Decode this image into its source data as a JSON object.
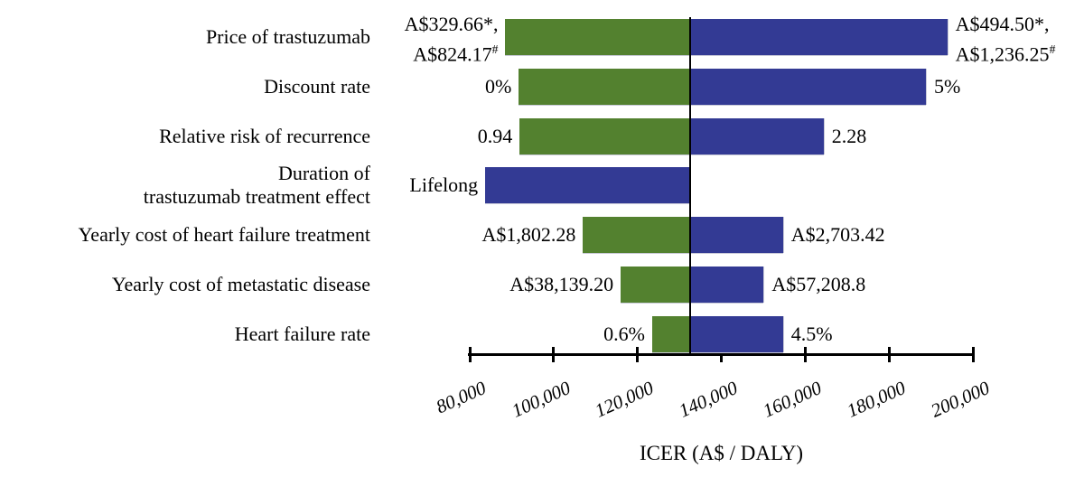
{
  "chart_data": {
    "type": "bar",
    "variant": "tornado-sensitivity",
    "xlabel": "ICER (A$ / DALY)",
    "xlim": [
      80000,
      200000
    ],
    "x_tick_values": [
      80000,
      100000,
      120000,
      140000,
      160000,
      180000,
      200000
    ],
    "x_tick_labels": [
      "80,000",
      "100,000",
      "120,000",
      "140,000",
      "160,000",
      "180,000",
      "200,000"
    ],
    "baseline_value": 132600,
    "grid": false,
    "legend": "none",
    "colors": {
      "green": "#53812F",
      "blue": "#333A94",
      "axis": "#000000"
    },
    "rows": [
      {
        "category_lines": [
          "Price of trastuzumab"
        ],
        "left_label_lines": [
          "A$329.66*,",
          "A$824.17^#"
        ],
        "right_label_lines": [
          "A$494.50*,",
          "A$1,236.25^#"
        ],
        "segments": [
          {
            "from": 88500,
            "to": 132600,
            "color": "green"
          },
          {
            "from": 132600,
            "to": 193900,
            "color": "blue"
          }
        ]
      },
      {
        "category_lines": [
          "Discount rate"
        ],
        "left_label_lines": [
          "0%"
        ],
        "right_label_lines": [
          "5%"
        ],
        "segments": [
          {
            "from": 91700,
            "to": 132600,
            "color": "green"
          },
          {
            "from": 132600,
            "to": 188800,
            "color": "blue"
          }
        ]
      },
      {
        "category_lines": [
          "Relative risk of recurrence"
        ],
        "left_label_lines": [
          "0.94"
        ],
        "right_label_lines": [
          "2.28"
        ],
        "segments": [
          {
            "from": 91900,
            "to": 132600,
            "color": "green"
          },
          {
            "from": 132600,
            "to": 164400,
            "color": "blue"
          }
        ]
      },
      {
        "category_lines": [
          "Duration of",
          "trastuzumab treatment effect"
        ],
        "left_label_lines": [
          "Lifelong"
        ],
        "right_label_lines": null,
        "segments": [
          {
            "from": 83700,
            "to": 132600,
            "color": "blue"
          }
        ]
      },
      {
        "category_lines": [
          "Yearly cost of heart failure treatment"
        ],
        "left_label_lines": [
          "A$1,802.28"
        ],
        "right_label_lines": [
          "A$2,703.42"
        ],
        "segments": [
          {
            "from": 107000,
            "to": 132600,
            "color": "green"
          },
          {
            "from": 132600,
            "to": 154700,
            "color": "blue"
          }
        ]
      },
      {
        "category_lines": [
          "Yearly cost of metastatic disease"
        ],
        "left_label_lines": [
          "A$38,139.20"
        ],
        "right_label_lines": [
          "A$57,208.8"
        ],
        "segments": [
          {
            "from": 116000,
            "to": 132600,
            "color": "green"
          },
          {
            "from": 132600,
            "to": 150100,
            "color": "blue"
          }
        ]
      },
      {
        "category_lines": [
          "Heart failure rate"
        ],
        "left_label_lines": [
          "0.6%"
        ],
        "right_label_lines": [
          "4.5%"
        ],
        "segments": [
          {
            "from": 123500,
            "to": 132600,
            "color": "green"
          },
          {
            "from": 132600,
            "to": 154700,
            "color": "blue"
          }
        ]
      }
    ]
  }
}
